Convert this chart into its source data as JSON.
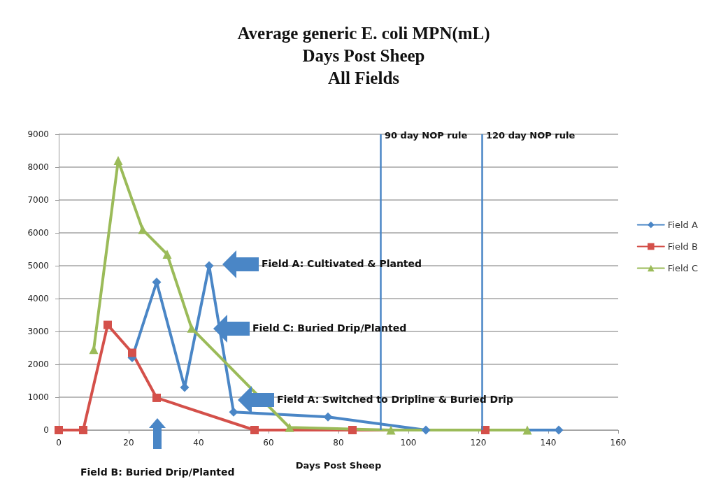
{
  "chart_data": {
    "type": "line",
    "title": "Average generic E. coli MPN(mL)\nDays Post Sheep\nAll Fields",
    "xlabel": "Days Post Sheep",
    "series": [
      {
        "name": "Field A",
        "color": "#4a86c6",
        "marker": "diamond",
        "x": [
          21,
          28,
          36,
          43,
          50,
          77,
          105,
          143
        ],
        "values": [
          2200,
          4500,
          1300,
          5000,
          550,
          400,
          0,
          0
        ]
      },
      {
        "name": "Field B",
        "color": "#d4504a",
        "marker": "square",
        "x": [
          0,
          7,
          14,
          21,
          28,
          56,
          84,
          122
        ],
        "values": [
          0,
          0,
          3200,
          2350,
          980,
          0,
          0,
          0
        ]
      },
      {
        "name": "Field C",
        "color": "#9bbb59",
        "marker": "triangle",
        "x": [
          10,
          17,
          24,
          31,
          38,
          66,
          95,
          134
        ],
        "values": [
          2450,
          8200,
          6100,
          5350,
          3100,
          80,
          0,
          0
        ]
      }
    ],
    "xlim": [
      0,
      160
    ],
    "xticks": [
      0,
      20,
      40,
      60,
      80,
      100,
      120,
      140,
      160
    ],
    "ylim": [
      0,
      9000
    ],
    "yticks": [
      0,
      1000,
      2000,
      3000,
      4000,
      5000,
      6000,
      7000,
      8000,
      9000
    ],
    "grid": "y",
    "legend": "right",
    "line_style": "solid",
    "ref_lines": [
      {
        "axis": "x",
        "value": 92,
        "label": "90 day NOP rule",
        "color": "#4a86c6"
      },
      {
        "axis": "x",
        "value": 121,
        "label": "120 day NOP rule",
        "color": "#4a86c6"
      }
    ],
    "annotations": [
      "Field A: Cultivated & Planted",
      "Field C: Buried Drip/Planted",
      "Field A: Switched to Dripline & Buried Drip",
      "Field B: Buried Drip/Planted"
    ]
  }
}
